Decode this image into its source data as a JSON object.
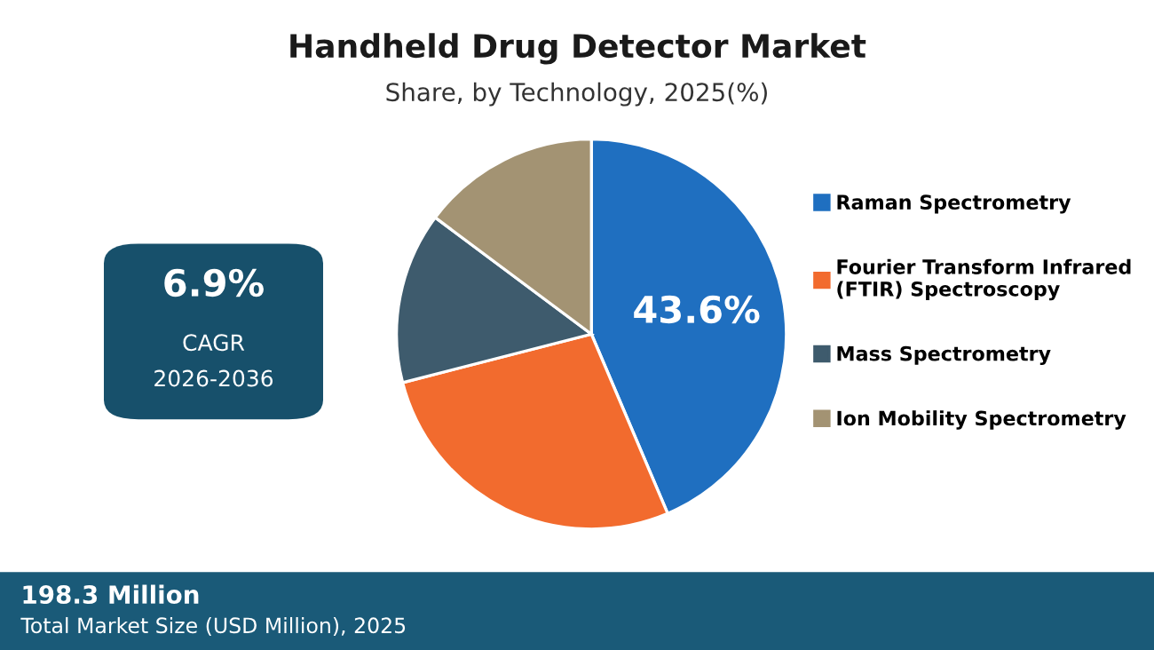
{
  "chart_data": {
    "type": "pie",
    "title": "Handheld Drug Detector Market",
    "subtitle": "Share, by Technology, 2025(%)",
    "categories": [
      "Raman Spectrometry",
      "Fourier Transform Infrared\n(FTIR) Spectroscopy",
      "Mass Spectrometry",
      "Ion Mobility Spectrometry"
    ],
    "values": [
      43.6,
      27.4,
      14.2,
      14.8
    ],
    "colors": [
      "#1f6fc0",
      "#f26b2e",
      "#3e5b6d",
      "#a39373"
    ],
    "value_labels": [
      "43.6%",
      null,
      null,
      null
    ],
    "legend": "right",
    "annotations": [
      "6.9%",
      "CAGR",
      "2026-2036",
      "198.3 Million",
      "Total Market Size (USD Million), 2025"
    ]
  }
}
